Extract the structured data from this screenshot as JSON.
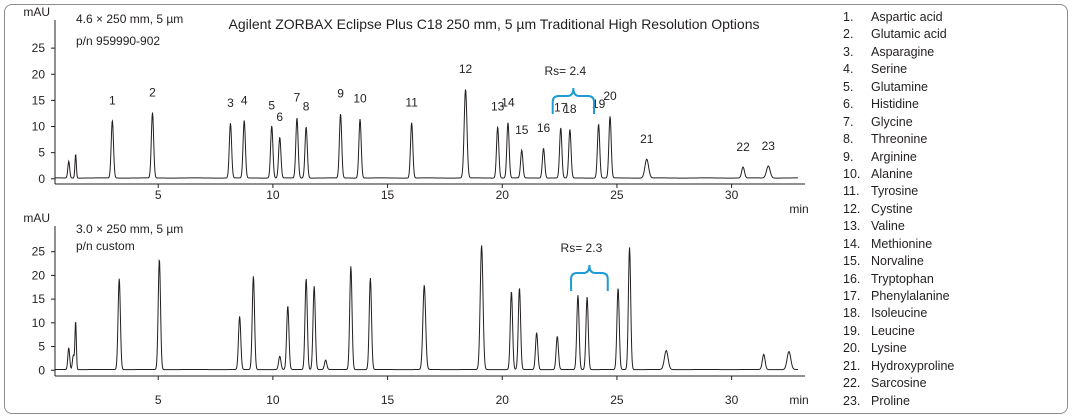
{
  "title": "Agilent ZORBAX Eclipse Plus C18 250 mm, 5 µm Traditional High Resolution Options",
  "chart_data": [
    {
      "type": "line",
      "panel": "top",
      "column_label": "4.6 × 250 mm, 5 µm",
      "part_label": "p/n 959990-902",
      "ylabel": "mAU",
      "xlabel": "min",
      "xlim": [
        0.5,
        33.2
      ],
      "ylim": [
        -1,
        30
      ],
      "xticks": [
        5,
        10,
        15,
        20,
        25,
        30
      ],
      "yticks": [
        0,
        5,
        10,
        15,
        20,
        25
      ],
      "resolution_label": "Rs= 2.4",
      "resolution_span": [
        22.2,
        24.0
      ],
      "peaks": [
        {
          "t": 1.1,
          "h": 3.2,
          "w": 0.04
        },
        {
          "t": 1.4,
          "h": 4.6,
          "w": 0.03
        },
        {
          "t": 3.0,
          "h": 11.0,
          "w": 0.05,
          "label": "1"
        },
        {
          "t": 4.75,
          "h": 12.5,
          "w": 0.05,
          "label": "2"
        },
        {
          "t": 8.15,
          "h": 10.5,
          "w": 0.05,
          "label": "3"
        },
        {
          "t": 8.75,
          "h": 11.0,
          "w": 0.05,
          "label": "4"
        },
        {
          "t": 9.95,
          "h": 10.0,
          "w": 0.05,
          "label": "5"
        },
        {
          "t": 10.3,
          "h": 7.8,
          "w": 0.05,
          "label": "6"
        },
        {
          "t": 11.05,
          "h": 11.5,
          "w": 0.05,
          "label": "7"
        },
        {
          "t": 11.45,
          "h": 9.8,
          "w": 0.05,
          "label": "8"
        },
        {
          "t": 12.95,
          "h": 12.3,
          "w": 0.05,
          "label": "9"
        },
        {
          "t": 13.8,
          "h": 11.3,
          "w": 0.05,
          "label": "10"
        },
        {
          "t": 16.05,
          "h": 10.6,
          "w": 0.05,
          "label": "11"
        },
        {
          "t": 18.4,
          "h": 17.0,
          "w": 0.06,
          "label": "12"
        },
        {
          "t": 19.8,
          "h": 9.8,
          "w": 0.05,
          "label": "13"
        },
        {
          "t": 20.25,
          "h": 10.6,
          "w": 0.05,
          "label": "14"
        },
        {
          "t": 20.85,
          "h": 5.3,
          "w": 0.05,
          "label": "15"
        },
        {
          "t": 21.8,
          "h": 5.7,
          "w": 0.05,
          "label": "16"
        },
        {
          "t": 22.55,
          "h": 9.6,
          "w": 0.05,
          "label": "17"
        },
        {
          "t": 22.95,
          "h": 9.3,
          "w": 0.05,
          "label": "18"
        },
        {
          "t": 24.2,
          "h": 10.3,
          "w": 0.05,
          "label": "19"
        },
        {
          "t": 24.7,
          "h": 11.8,
          "w": 0.05,
          "label": "20"
        },
        {
          "t": 26.3,
          "h": 3.6,
          "w": 0.08,
          "label": "21"
        },
        {
          "t": 30.5,
          "h": 2.1,
          "w": 0.06,
          "label": "22"
        },
        {
          "t": 31.6,
          "h": 2.3,
          "w": 0.08,
          "label": "23"
        }
      ]
    },
    {
      "type": "line",
      "panel": "bottom",
      "column_label": "3.0 × 250 mm, 5 µm",
      "part_label": "p/n custom",
      "ylabel": "mAU",
      "xlabel": "min",
      "xlim": [
        0.5,
        33.2
      ],
      "ylim": [
        -1,
        30
      ],
      "xticks": [
        5,
        10,
        15,
        20,
        25,
        30
      ],
      "yticks": [
        0,
        5,
        10,
        15,
        20,
        25
      ],
      "resolution_label": "Rs= 2.3",
      "resolution_span": [
        23.0,
        24.6
      ],
      "peaks": [
        {
          "t": 1.1,
          "h": 4.6,
          "w": 0.04
        },
        {
          "t": 1.3,
          "h": 3.0,
          "w": 0.04
        },
        {
          "t": 1.4,
          "h": 10.2,
          "w": 0.03
        },
        {
          "t": 3.3,
          "h": 19.2,
          "w": 0.05
        },
        {
          "t": 5.05,
          "h": 23.3,
          "w": 0.05
        },
        {
          "t": 8.55,
          "h": 11.2,
          "w": 0.05
        },
        {
          "t": 9.15,
          "h": 19.7,
          "w": 0.05
        },
        {
          "t": 10.3,
          "h": 2.8,
          "w": 0.05
        },
        {
          "t": 10.65,
          "h": 13.4,
          "w": 0.05
        },
        {
          "t": 11.45,
          "h": 19.2,
          "w": 0.05
        },
        {
          "t": 11.8,
          "h": 17.6,
          "w": 0.05
        },
        {
          "t": 12.3,
          "h": 2.0,
          "w": 0.05
        },
        {
          "t": 13.4,
          "h": 21.8,
          "w": 0.05
        },
        {
          "t": 14.25,
          "h": 19.3,
          "w": 0.05
        },
        {
          "t": 16.6,
          "h": 17.8,
          "w": 0.06
        },
        {
          "t": 19.1,
          "h": 26.2,
          "w": 0.06
        },
        {
          "t": 20.4,
          "h": 16.5,
          "w": 0.05
        },
        {
          "t": 20.75,
          "h": 17.2,
          "w": 0.05
        },
        {
          "t": 21.5,
          "h": 7.8,
          "w": 0.05
        },
        {
          "t": 22.4,
          "h": 7.0,
          "w": 0.05
        },
        {
          "t": 23.3,
          "h": 15.7,
          "w": 0.05
        },
        {
          "t": 23.7,
          "h": 15.3,
          "w": 0.05
        },
        {
          "t": 25.05,
          "h": 17.2,
          "w": 0.05
        },
        {
          "t": 25.55,
          "h": 25.8,
          "w": 0.05
        },
        {
          "t": 27.15,
          "h": 4.0,
          "w": 0.08
        },
        {
          "t": 31.4,
          "h": 3.2,
          "w": 0.06
        },
        {
          "t": 32.5,
          "h": 3.8,
          "w": 0.08
        }
      ]
    }
  ],
  "legend": [
    {
      "num": "1.",
      "name": "Aspartic acid"
    },
    {
      "num": "2.",
      "name": "Glutamic acid"
    },
    {
      "num": "3.",
      "name": "Asparagine"
    },
    {
      "num": "4.",
      "name": "Serine"
    },
    {
      "num": "5.",
      "name": "Glutamine"
    },
    {
      "num": "6.",
      "name": "Histidine"
    },
    {
      "num": "7.",
      "name": "Glycine"
    },
    {
      "num": "8.",
      "name": "Threonine"
    },
    {
      "num": "9.",
      "name": "Arginine"
    },
    {
      "num": "10.",
      "name": "Alanine"
    },
    {
      "num": "11.",
      "name": "Tyrosine"
    },
    {
      "num": "12.",
      "name": "Cystine"
    },
    {
      "num": "13.",
      "name": "Valine"
    },
    {
      "num": "14.",
      "name": "Methionine"
    },
    {
      "num": "15.",
      "name": "Norvaline"
    },
    {
      "num": "16.",
      "name": "Tryptophan"
    },
    {
      "num": "17.",
      "name": "Phenylalanine"
    },
    {
      "num": "18.",
      "name": "Isoleucine"
    },
    {
      "num": "19.",
      "name": "Leucine"
    },
    {
      "num": "20.",
      "name": "Lysine"
    },
    {
      "num": "21.",
      "name": "Hydroxyproline"
    },
    {
      "num": "22.",
      "name": "Sarcosine"
    },
    {
      "num": "23.",
      "name": "Proline"
    }
  ],
  "colors": {
    "trace": "#231f20",
    "bracket": "#1f9ad6",
    "frame": "#8c8c8c"
  }
}
